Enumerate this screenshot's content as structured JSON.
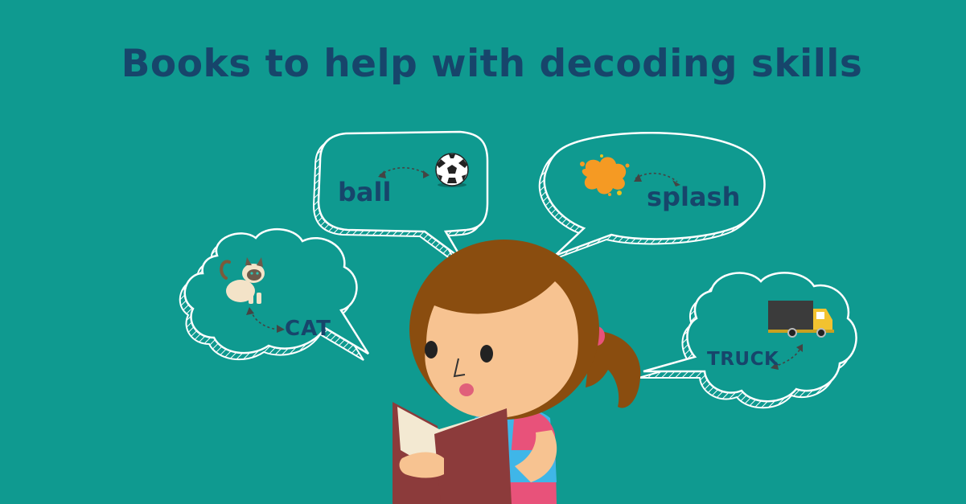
{
  "title": "Books to help with decoding skills",
  "bubbles": {
    "ball": {
      "word": "ball",
      "icon": "soccer-ball-icon"
    },
    "splash": {
      "word": "splash",
      "icon": "orange-splash-icon"
    },
    "cat": {
      "word": "CAT",
      "icon": "cat-icon"
    },
    "truck": {
      "word": "TRUCK",
      "icon": "truck-icon"
    }
  },
  "colors": {
    "background": "#0f9a90",
    "title": "#17456b",
    "skin": "#f7c391",
    "hair": "#8a4d0f",
    "book": "#8c3b3b",
    "shirt_pink": "#e8527a",
    "shirt_blue": "#3fb6e8",
    "splash": "#f59a23",
    "truck_body": "#3b3b3b",
    "truck_cab": "#f2c230"
  }
}
